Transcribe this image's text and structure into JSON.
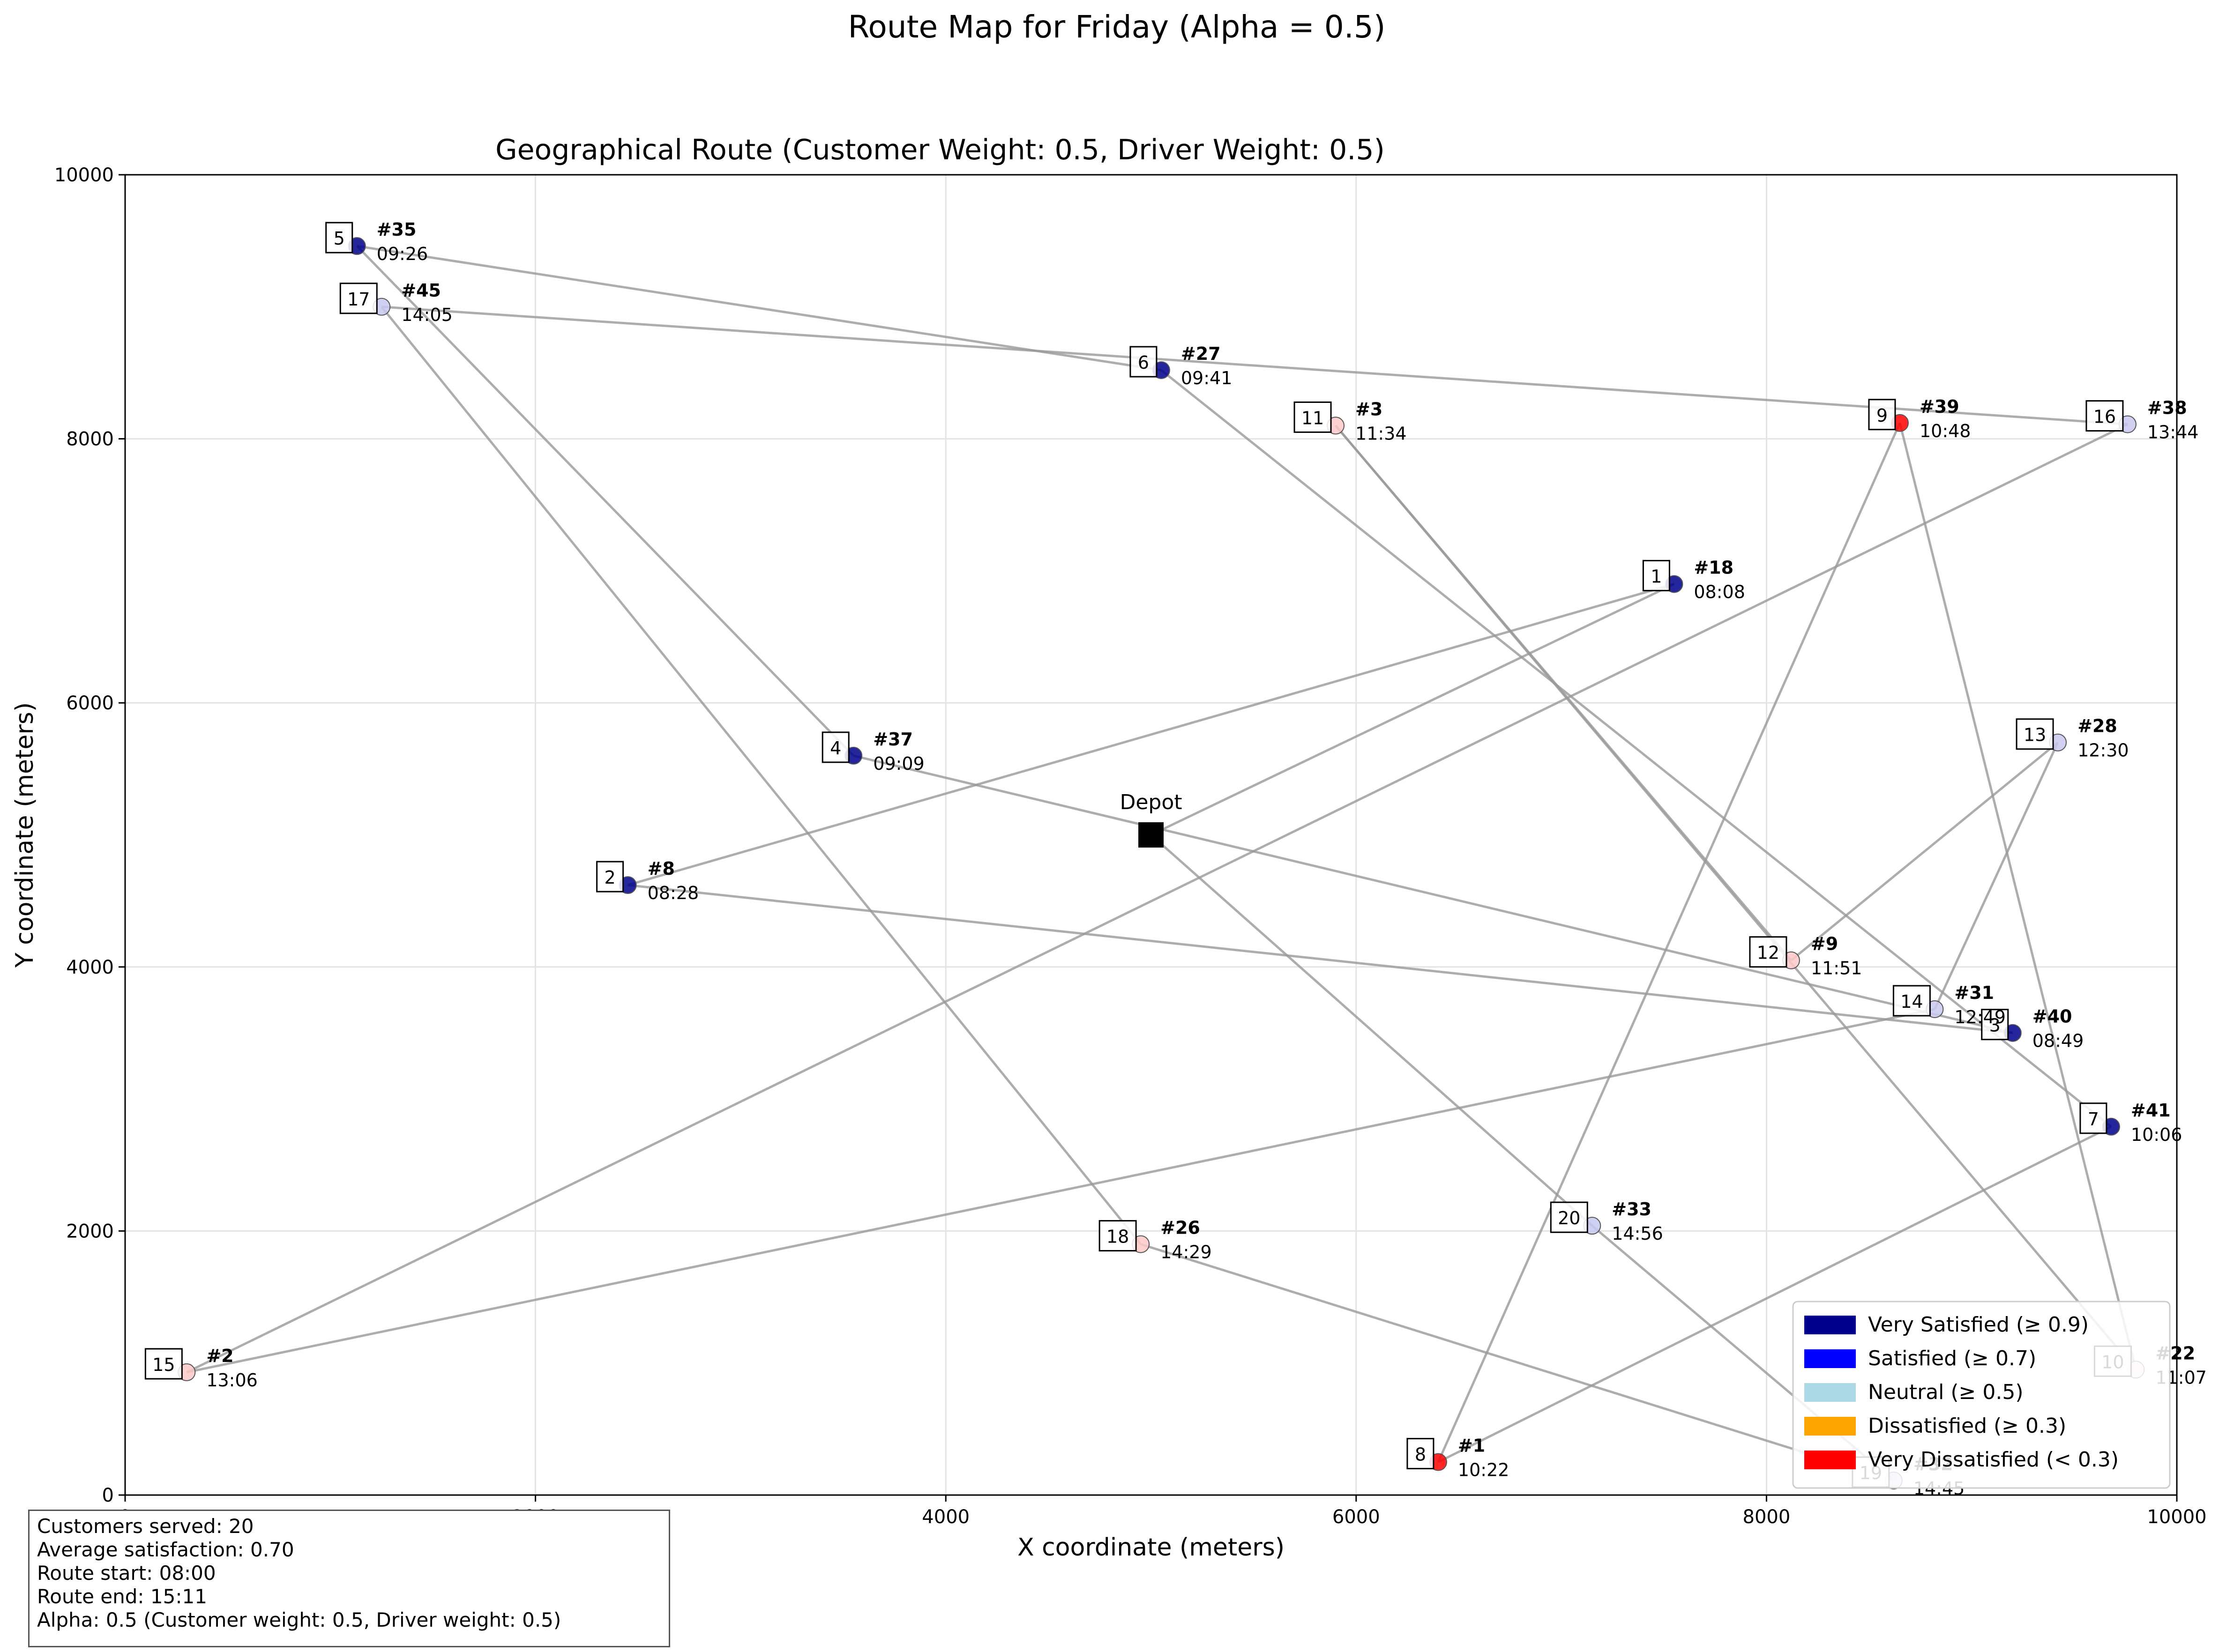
{
  "figure_title": "Route Map for Friday (Alpha = 0.5)",
  "chart_data": {
    "type": "scatter",
    "title": "Geographical Route (Customer Weight: 0.5, Driver Weight: 0.5)",
    "xlabel": "X coordinate (meters)",
    "ylabel": "Y coordinate (meters)",
    "xlim": [
      0,
      10000
    ],
    "ylim": [
      0,
      10000
    ],
    "x_ticks": [
      "0",
      "2000",
      "4000",
      "6000",
      "8000",
      "10000"
    ],
    "y_ticks": [
      "0",
      "2000",
      "4000",
      "6000",
      "8000",
      "10000"
    ],
    "grid": true,
    "legend_position": "lower-right",
    "depot": {
      "label": "Depot",
      "x": 5000,
      "y": 5000
    },
    "legend": [
      {
        "label": "Very Satisfied (≥ 0.9)",
        "color": "#00008b"
      },
      {
        "label": "Satisfied (≥ 0.7)",
        "color": "#0000ff"
      },
      {
        "label": "Neutral (≥ 0.5)",
        "color": "#add8e6"
      },
      {
        "label": "Dissatisfied (≥ 0.3)",
        "color": "#ffa500"
      },
      {
        "label": "Very Dissatisfied (< 0.3)",
        "color": "#ff0000"
      }
    ],
    "stops": [
      {
        "seq": "1",
        "customer": "#18",
        "time": "08:08",
        "x": 7550,
        "y": 6900,
        "color": "#00008b"
      },
      {
        "seq": "2",
        "customer": "#8",
        "time": "08:28",
        "x": 2450,
        "y": 4620,
        "color": "#00008b"
      },
      {
        "seq": "3",
        "customer": "#40",
        "time": "08:49",
        "x": 9200,
        "y": 3500,
        "color": "#00008b"
      },
      {
        "seq": "4",
        "customer": "#37",
        "time": "09:09",
        "x": 3550,
        "y": 5600,
        "color": "#00008b"
      },
      {
        "seq": "5",
        "customer": "#35",
        "time": "09:26",
        "x": 1130,
        "y": 9460,
        "color": "#00008b"
      },
      {
        "seq": "6",
        "customer": "#27",
        "time": "09:41",
        "x": 5050,
        "y": 8520,
        "color": "#00008b"
      },
      {
        "seq": "7",
        "customer": "#41",
        "time": "10:06",
        "x": 9680,
        "y": 2790,
        "color": "#00008b"
      },
      {
        "seq": "8",
        "customer": "#1",
        "time": "10:22",
        "x": 6400,
        "y": 250,
        "color": "#ff0000"
      },
      {
        "seq": "9",
        "customer": "#39",
        "time": "10:48",
        "x": 8650,
        "y": 8120,
        "color": "#ff0000"
      },
      {
        "seq": "10",
        "customer": "#22",
        "time": "11:07",
        "x": 9800,
        "y": 950,
        "color": "#ffe0e0"
      },
      {
        "seq": "11",
        "customer": "#3",
        "time": "11:34",
        "x": 5900,
        "y": 8100,
        "color": "#ffc8c8"
      },
      {
        "seq": "12",
        "customer": "#9",
        "time": "11:51",
        "x": 8120,
        "y": 4050,
        "color": "#ffc8c8"
      },
      {
        "seq": "13",
        "customer": "#28",
        "time": "12:30",
        "x": 9420,
        "y": 5700,
        "color": "#c8c8f0"
      },
      {
        "seq": "14",
        "customer": "#31",
        "time": "12:49",
        "x": 8820,
        "y": 3680,
        "color": "#c8c8f0"
      },
      {
        "seq": "15",
        "customer": "#2",
        "time": "13:06",
        "x": 300,
        "y": 930,
        "color": "#ffc8c8"
      },
      {
        "seq": "16",
        "customer": "#38",
        "time": "13:44",
        "x": 9760,
        "y": 8110,
        "color": "#c8c8f0"
      },
      {
        "seq": "17",
        "customer": "#45",
        "time": "14:05",
        "x": 1250,
        "y": 9000,
        "color": "#c8c8f0"
      },
      {
        "seq": "18",
        "customer": "#26",
        "time": "14:29",
        "x": 4950,
        "y": 1900,
        "color": "#ffc8c8"
      },
      {
        "seq": "19",
        "customer": "#32",
        "time": "14:45",
        "x": 8620,
        "y": 110,
        "color": "#c8c8f0"
      },
      {
        "seq": "20",
        "customer": "#33",
        "time": "14:56",
        "x": 7150,
        "y": 2040,
        "color": "#c8c8f0"
      }
    ]
  },
  "stats": {
    "customers": "Customers served: 20",
    "avg_satisfaction": "Average satisfaction: 0.70",
    "route_start": "Route start: 08:00",
    "route_end": "Route end: 15:11",
    "alpha": "Alpha: 0.5 (Customer weight: 0.5, Driver weight: 0.5)"
  }
}
